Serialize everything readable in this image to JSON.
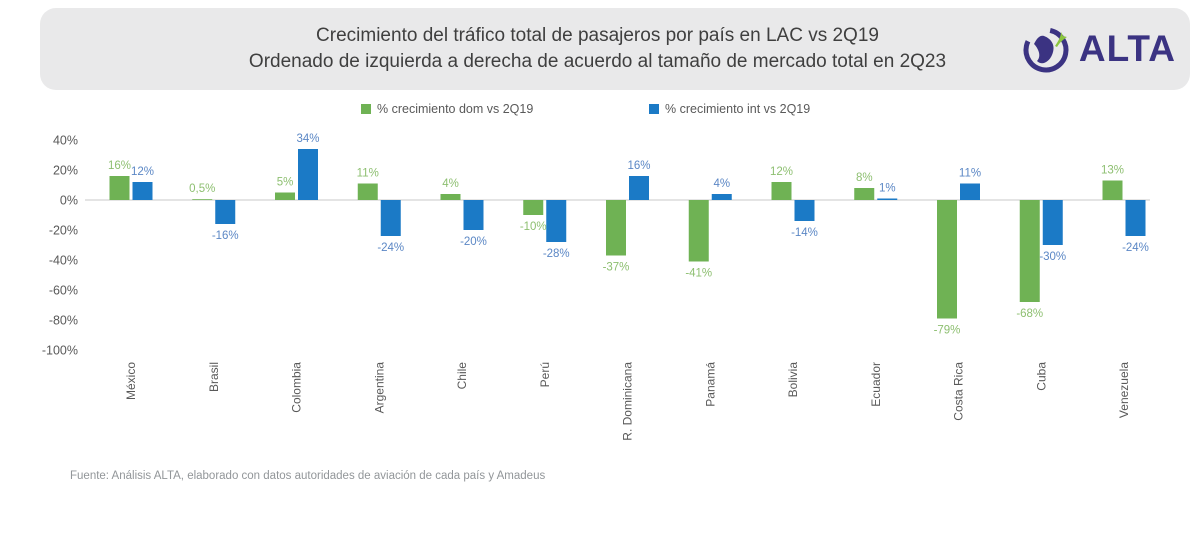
{
  "header": {
    "logo_text": "ALTA",
    "logo_color": "#3b3382",
    "logo_accent": "#8bc53f",
    "background": "#e9e9ea"
  },
  "footer": {
    "source": "Fuente: Análisis ALTA, elaborado con datos autoridades de aviación de cada país y Amadeus"
  },
  "chart_data": {
    "type": "bar",
    "title": "Crecimiento del tráfico total de pasajeros por país en LAC vs 2Q19",
    "subtitle": "Ordenado de izquierda a derecha de acuerdo al tamaño de mercado total en 2Q23",
    "categories": [
      "México",
      "Brasil",
      "Colombia",
      "Argentina",
      "Chile",
      "Perú",
      "R. Dominicana",
      "Panamá",
      "Bolivia",
      "Ecuador",
      "Costa Rica",
      "Cuba",
      "Venezuela"
    ],
    "series": [
      {
        "name": "% crecimiento dom vs 2Q19",
        "color": "#6fb254",
        "label_color": "#8dbf70",
        "values": [
          16,
          0.5,
          5,
          11,
          4,
          -10,
          -37,
          -41,
          12,
          8,
          -79,
          -68,
          13
        ],
        "labels": [
          "16%",
          "0,5%",
          "5%",
          "11%",
          "4%",
          "-10%",
          "-37%",
          "-41%",
          "12%",
          "8%",
          "-79%",
          "-68%",
          "13%"
        ]
      },
      {
        "name": "% crecimiento int vs 2Q19",
        "color": "#1b7ac6",
        "label_color": "#5b87c5",
        "values": [
          12,
          -16,
          34,
          -24,
          -20,
          -28,
          16,
          4,
          -14,
          1,
          11,
          -30,
          -24
        ],
        "labels": [
          "12%",
          "-16%",
          "34%",
          "-24%",
          "-20%",
          "-28%",
          "16%",
          "4%",
          "-14%",
          "1%",
          "11%",
          "-30%",
          "-24%"
        ]
      }
    ],
    "y_tick_labels": [
      "40%",
      "20%",
      "0%",
      "-20%",
      "-40%",
      "-60%",
      "-80%",
      "-100%"
    ],
    "y_tick_values": [
      40,
      20,
      0,
      -20,
      -40,
      -60,
      -80,
      -100
    ],
    "ylim": [
      -100,
      40
    ],
    "grid": false,
    "legend_position": "top",
    "axis_color": "#c9c9c9",
    "tick_color": "#595959"
  }
}
